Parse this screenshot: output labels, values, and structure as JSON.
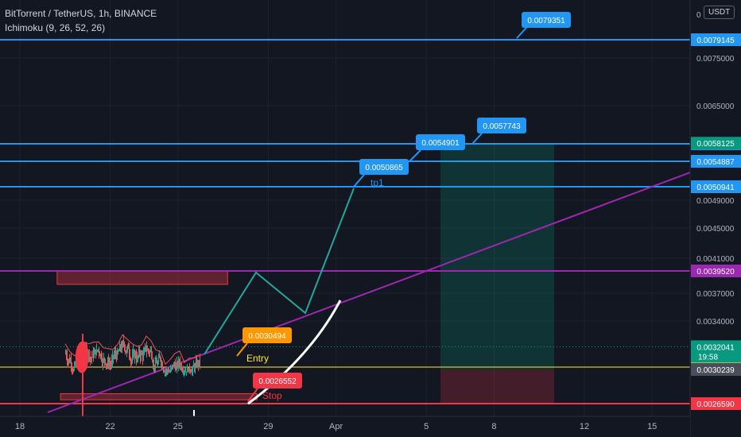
{
  "header": {
    "symbol": "BitTorrent / TetherUS, 1h, BINANCE",
    "indicator": "Ichimoku (9, 26, 52, 26)",
    "currency": "USDT"
  },
  "colors": {
    "background": "#131722",
    "blue_line": "#2196f3",
    "purple_line": "#9c27b0",
    "green_label": "#089981",
    "red_label": "#f23645",
    "yellow": "#ffeb3b",
    "orange": "#ff9800",
    "teal_path": "#26a69a"
  },
  "chart_data": {
    "type": "line",
    "title": "BitTorrent / TetherUS, 1h, BINANCE",
    "ylim": [
      0.0025,
      0.0086
    ],
    "x_ticks": [
      "18",
      "22",
      "25",
      "29",
      "Apr",
      "5",
      "8",
      "12",
      "15"
    ],
    "y_ticks": [
      "0.0065000",
      "0.0049000",
      "0.0045000",
      "0.0041000",
      "0.0037000",
      "0.0034000",
      "0.0075000"
    ],
    "horizontal_lines": [
      {
        "value": 0.0079145,
        "label": "0.0079145",
        "color": "#2196f3"
      },
      {
        "value": 0.0058014,
        "label": "0.0058014",
        "color": "#2196f3"
      },
      {
        "value": 0.0054887,
        "label": "0.0054887",
        "color": "#2196f3"
      },
      {
        "value": 0.0050941,
        "label": "0.0050941",
        "color": "#2196f3"
      },
      {
        "value": 0.003952,
        "label": "0.0039520",
        "color": "#9c27b0"
      },
      {
        "value": 0.0030491,
        "label": "0.0030491",
        "color": "#ffeb3b"
      },
      {
        "value": 0.002659,
        "label": "0.0026590",
        "color": "#f23645"
      }
    ],
    "axis_labels": [
      {
        "value": 0.0058125,
        "text": "0.0058125",
        "color": "#089981"
      },
      {
        "value": 0.0032041,
        "text": "0.0032041",
        "sub": "19:58",
        "color": "#089981"
      },
      {
        "value": 0.0030239,
        "text": "0.0030239",
        "color": "#4a4e5a"
      }
    ],
    "callouts": [
      {
        "text": "0.0079351",
        "value": 0.0079351,
        "color": "#2196f3"
      },
      {
        "text": "0.0057743",
        "value": 0.0057743,
        "color": "#2196f3"
      },
      {
        "text": "0.0054901",
        "value": 0.0054901,
        "color": "#2196f3"
      },
      {
        "text": "0.0050865",
        "value": 0.0050865,
        "color": "#2196f3"
      },
      {
        "text": "0.0030494",
        "value": 0.0030494,
        "color": "#ff9800"
      },
      {
        "text": "0.0026552",
        "value": 0.0026552,
        "color": "#f23645"
      }
    ],
    "annotations": [
      "tp1",
      "Entry",
      "Stop"
    ]
  }
}
